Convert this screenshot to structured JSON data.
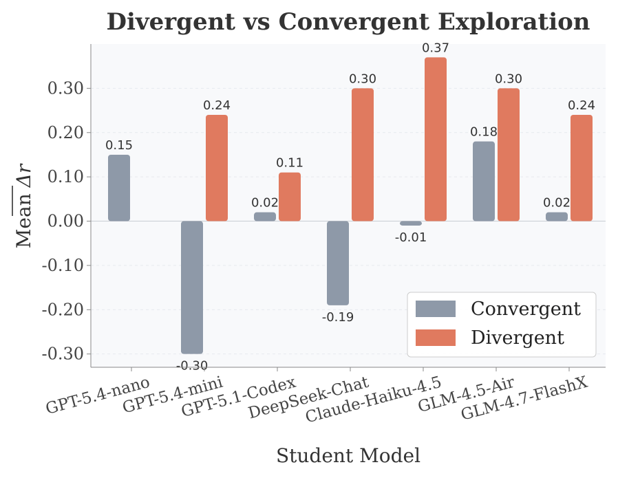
{
  "chart_data": {
    "type": "bar",
    "title": "Divergent vs Convergent Exploration",
    "xlabel": "Student Model",
    "ylabel": "Mean Δr",
    "ylabel_prefix": "Mean ",
    "ylabel_symbol": "Δr",
    "categories": [
      "GPT-5.4-nano",
      "GPT-5.4-mini",
      "GPT-5.1-Codex",
      "DeepSeek-Chat",
      "Claude-Haiku-4.5",
      "GLM-4.5-Air",
      "GLM-4.7-FlashX"
    ],
    "series": [
      {
        "name": "Convergent",
        "color": "#8e99a8",
        "values": [
          0.15,
          -0.3,
          0.02,
          -0.19,
          -0.01,
          0.18,
          0.02
        ],
        "labels": [
          "0.15",
          "-0.30",
          "0.02",
          "-0.19",
          "-0.01",
          "0.18",
          "0.02"
        ]
      },
      {
        "name": "Divergent",
        "color": "#e07a5f",
        "values": [
          null,
          0.24,
          0.11,
          0.3,
          0.37,
          0.3,
          0.24
        ],
        "labels": [
          "",
          "0.24",
          "0.11",
          "0.30",
          "0.37",
          "0.30",
          "0.24"
        ]
      }
    ],
    "yticks": [
      -0.3,
      -0.2,
      -0.1,
      0.0,
      0.1,
      0.2,
      0.3
    ],
    "ytick_labels": [
      "-0.30",
      "-0.20",
      "-0.10",
      "0.00",
      "0.10",
      "0.20",
      "0.30"
    ],
    "ylim": [
      -0.33,
      0.4
    ],
    "grid": true,
    "legend_position": "bottom-right",
    "background": "#f8f9fb"
  }
}
